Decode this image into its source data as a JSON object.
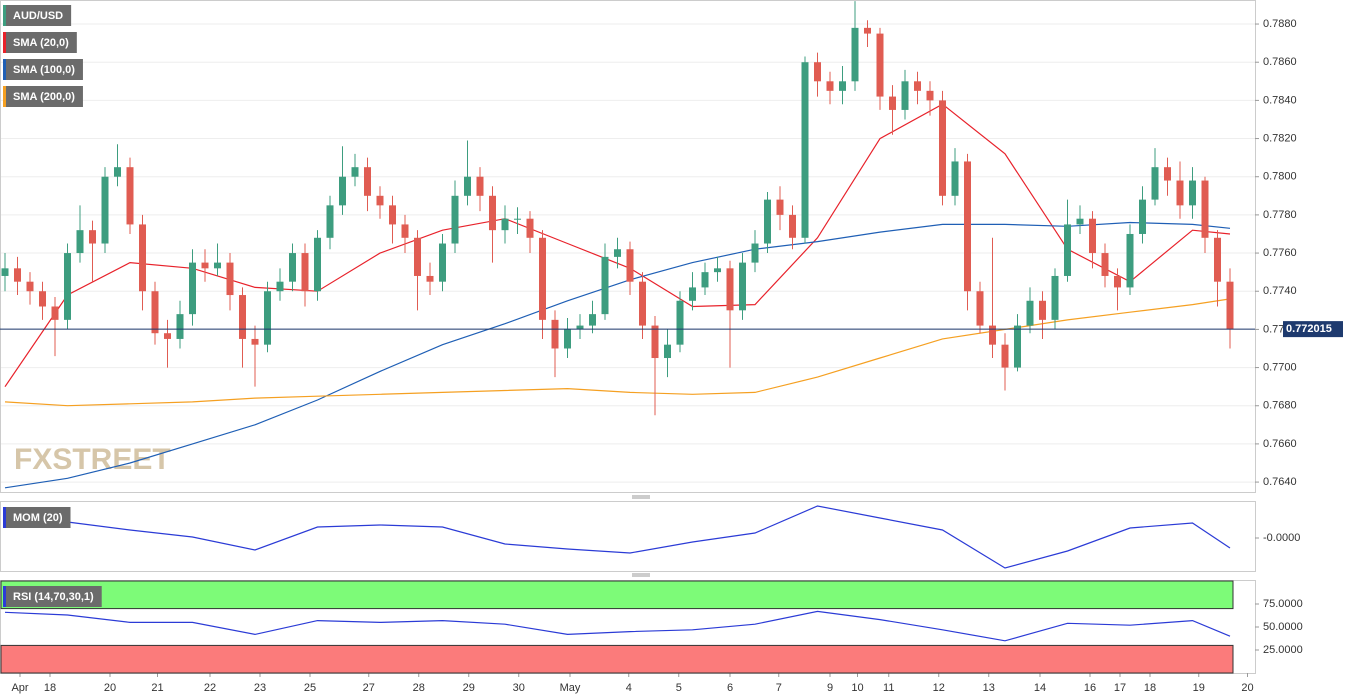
{
  "chart_data": [
    {
      "type": "candlestick",
      "name": "AUD/USD",
      "up_color": "#3d9d7f",
      "down_color": "#e05c52",
      "open": [
        0.7748,
        0.7752,
        0.7745,
        0.774,
        0.7732,
        0.7725,
        0.776,
        0.7772,
        0.7765,
        0.78,
        0.7805,
        0.7775,
        0.774,
        0.7718,
        0.7715,
        0.7728,
        0.7755,
        0.7752,
        0.7755,
        0.7738,
        0.7715,
        0.7712,
        0.774,
        0.7745,
        0.776,
        0.774,
        0.7768,
        0.7785,
        0.78,
        0.7805,
        0.779,
        0.7785,
        0.7775,
        0.7768,
        0.7748,
        0.7745,
        0.7765,
        0.779,
        0.78,
        0.779,
        0.7772,
        0.7778,
        0.7778,
        0.7768,
        0.7725,
        0.771,
        0.772,
        0.7722,
        0.7728,
        0.7758,
        0.7762,
        0.7745,
        0.7722,
        0.7705,
        0.7712,
        0.7735,
        0.7742,
        0.775,
        0.7752,
        0.773,
        0.7755,
        0.7765,
        0.7788,
        0.778,
        0.7768,
        0.786,
        0.785,
        0.7845,
        0.785,
        0.7878,
        0.7875,
        0.7842,
        0.7835,
        0.785,
        0.7845,
        0.784,
        0.779,
        0.7808,
        0.774,
        0.7722,
        0.7712,
        0.77,
        0.7722,
        0.7735,
        0.7725,
        0.7748,
        0.7775,
        0.7778,
        0.776,
        0.7748,
        0.7742,
        0.777,
        0.7788,
        0.7805,
        0.7798,
        0.7785,
        0.7798,
        0.7768,
        0.7745
      ],
      "high": [
        0.776,
        0.7758,
        0.775,
        0.7745,
        0.7737,
        0.7765,
        0.7785,
        0.7777,
        0.7805,
        0.7817,
        0.781,
        0.778,
        0.7745,
        0.7725,
        0.7735,
        0.7762,
        0.7762,
        0.7765,
        0.776,
        0.7742,
        0.7722,
        0.7745,
        0.7752,
        0.7765,
        0.7765,
        0.7772,
        0.779,
        0.7816,
        0.7812,
        0.781,
        0.7795,
        0.779,
        0.778,
        0.7772,
        0.7755,
        0.777,
        0.7798,
        0.7819,
        0.7805,
        0.7795,
        0.7785,
        0.7784,
        0.7782,
        0.7772,
        0.773,
        0.7726,
        0.7728,
        0.7735,
        0.7765,
        0.7768,
        0.7766,
        0.775,
        0.7727,
        0.772,
        0.774,
        0.775,
        0.7755,
        0.7758,
        0.7756,
        0.776,
        0.7772,
        0.7792,
        0.7795,
        0.7785,
        0.7863,
        0.7865,
        0.7855,
        0.7858,
        0.7892,
        0.7882,
        0.7878,
        0.7848,
        0.7856,
        0.7855,
        0.785,
        0.7845,
        0.7815,
        0.7812,
        0.7745,
        0.7768,
        0.7718,
        0.7728,
        0.7742,
        0.774,
        0.7752,
        0.7788,
        0.7785,
        0.7782,
        0.7765,
        0.7752,
        0.7775,
        0.7795,
        0.7815,
        0.781,
        0.7808,
        0.7805,
        0.78,
        0.7772,
        0.7752
      ],
      "low": [
        0.774,
        0.7738,
        0.7733,
        0.7725,
        0.7706,
        0.772,
        0.7755,
        0.7745,
        0.776,
        0.7795,
        0.777,
        0.773,
        0.7712,
        0.77,
        0.771,
        0.7722,
        0.7745,
        0.7748,
        0.773,
        0.77,
        0.769,
        0.7708,
        0.7735,
        0.774,
        0.7732,
        0.7735,
        0.7762,
        0.778,
        0.7795,
        0.7782,
        0.7778,
        0.7765,
        0.776,
        0.773,
        0.7738,
        0.774,
        0.776,
        0.7785,
        0.7782,
        0.7755,
        0.7765,
        0.777,
        0.776,
        0.7715,
        0.7695,
        0.7705,
        0.7715,
        0.7718,
        0.7725,
        0.7752,
        0.7738,
        0.7715,
        0.7675,
        0.7695,
        0.7708,
        0.773,
        0.7738,
        0.7745,
        0.77,
        0.7725,
        0.775,
        0.776,
        0.7772,
        0.7762,
        0.7765,
        0.7842,
        0.7838,
        0.7838,
        0.7845,
        0.7868,
        0.7835,
        0.7822,
        0.783,
        0.7838,
        0.7832,
        0.7785,
        0.7785,
        0.773,
        0.7718,
        0.7705,
        0.7688,
        0.7698,
        0.7718,
        0.7715,
        0.772,
        0.7745,
        0.777,
        0.7752,
        0.7742,
        0.773,
        0.7738,
        0.7765,
        0.7785,
        0.779,
        0.7778,
        0.7778,
        0.776,
        0.7732,
        0.771
      ],
      "close": [
        0.7752,
        0.7745,
        0.774,
        0.7732,
        0.7725,
        0.776,
        0.7772,
        0.7765,
        0.78,
        0.7805,
        0.7775,
        0.774,
        0.7718,
        0.7715,
        0.7728,
        0.7755,
        0.7752,
        0.7755,
        0.7738,
        0.7715,
        0.7712,
        0.774,
        0.7745,
        0.776,
        0.774,
        0.7768,
        0.7785,
        0.78,
        0.7805,
        0.779,
        0.7785,
        0.7775,
        0.7768,
        0.7748,
        0.7745,
        0.7765,
        0.779,
        0.78,
        0.779,
        0.7772,
        0.7778,
        0.7778,
        0.7768,
        0.7725,
        0.771,
        0.772,
        0.7722,
        0.7728,
        0.7758,
        0.7762,
        0.7745,
        0.7722,
        0.7705,
        0.7712,
        0.7735,
        0.7742,
        0.775,
        0.7752,
        0.773,
        0.7755,
        0.7765,
        0.7788,
        0.778,
        0.7768,
        0.786,
        0.785,
        0.7845,
        0.785,
        0.7878,
        0.7875,
        0.7842,
        0.7835,
        0.785,
        0.7845,
        0.784,
        0.779,
        0.7808,
        0.774,
        0.7722,
        0.7712,
        0.77,
        0.7722,
        0.7735,
        0.7725,
        0.7748,
        0.7775,
        0.7778,
        0.776,
        0.7748,
        0.7742,
        0.777,
        0.7788,
        0.7805,
        0.7798,
        0.7785,
        0.7798,
        0.7768,
        0.7745,
        0.772015
      ],
      "last_price": 0.772015,
      "watermark": "FXSTREET",
      "overlays": [
        {
          "name": "SMA (20,0)",
          "color": "#e8222b",
          "x": [
            0,
            5,
            10,
            15,
            20,
            25,
            30,
            35,
            40,
            45,
            50,
            55,
            60,
            65,
            70,
            75,
            80,
            85,
            90,
            95,
            98
          ],
          "values": [
            0.769,
            0.7738,
            0.7755,
            0.7752,
            0.7742,
            0.774,
            0.776,
            0.7772,
            0.7778,
            0.7765,
            0.7752,
            0.7732,
            0.7733,
            0.7768,
            0.782,
            0.7838,
            0.7812,
            0.7762,
            0.7745,
            0.7772,
            0.777
          ]
        },
        {
          "name": "SMA (100,0)",
          "color": "#1f5fb5",
          "x": [
            0,
            5,
            10,
            15,
            20,
            25,
            30,
            35,
            40,
            45,
            50,
            55,
            60,
            65,
            70,
            75,
            80,
            85,
            90,
            95,
            98
          ],
          "values": [
            0.7637,
            0.7642,
            0.765,
            0.766,
            0.767,
            0.7683,
            0.7698,
            0.7712,
            0.7723,
            0.7735,
            0.7746,
            0.7755,
            0.7762,
            0.7766,
            0.7771,
            0.7775,
            0.7775,
            0.7774,
            0.7776,
            0.7775,
            0.7773
          ]
        },
        {
          "name": "SMA (200,0)",
          "color": "#f5a022",
          "x": [
            0,
            5,
            10,
            15,
            20,
            25,
            30,
            35,
            40,
            45,
            50,
            55,
            60,
            65,
            70,
            75,
            80,
            85,
            90,
            95,
            98
          ],
          "values": [
            0.7682,
            0.768,
            0.7681,
            0.7682,
            0.7684,
            0.7685,
            0.7686,
            0.7687,
            0.7688,
            0.7689,
            0.7687,
            0.7686,
            0.7687,
            0.7695,
            0.7705,
            0.7715,
            0.772,
            0.7725,
            0.7729,
            0.7733,
            0.7736
          ]
        }
      ],
      "xlim": [
        -0.4,
        100
      ],
      "xticks": [
        {
          "value": 1.2,
          "label": "Apr"
        },
        {
          "value": 3.6,
          "label": "18"
        },
        {
          "value": 8.4,
          "label": "20"
        },
        {
          "value": 12.2,
          "label": "21"
        },
        {
          "value": 16.4,
          "label": "22"
        },
        {
          "value": 20.4,
          "label": "23"
        },
        {
          "value": 24.4,
          "label": "25"
        },
        {
          "value": 29.1,
          "label": "27"
        },
        {
          "value": 33.1,
          "label": "28"
        },
        {
          "value": 37.1,
          "label": "29"
        },
        {
          "value": 41.1,
          "label": "30"
        },
        {
          "value": 45.2,
          "label": "May"
        },
        {
          "value": 49.9,
          "label": "4"
        },
        {
          "value": 53.9,
          "label": "5"
        },
        {
          "value": 58,
          "label": "6"
        },
        {
          "value": 61.9,
          "label": "7"
        },
        {
          "value": 66,
          "label": "9"
        },
        {
          "value": 68.2,
          "label": "10"
        },
        {
          "value": 70.7,
          "label": "11"
        },
        {
          "value": 74.7,
          "label": "12"
        },
        {
          "value": 78.7,
          "label": "13"
        },
        {
          "value": 82.8,
          "label": "14"
        },
        {
          "value": 86.8,
          "label": "16"
        },
        {
          "value": 89.2,
          "label": "17"
        },
        {
          "value": 91.6,
          "label": "18"
        },
        {
          "value": 95.5,
          "label": "19"
        },
        {
          "value": 99.4,
          "label": "20"
        }
      ],
      "ylim": [
        0.76348,
        0.78926
      ],
      "yticks": [
        {
          "value": 0.764,
          "label": "0.7640"
        },
        {
          "value": 0.766,
          "label": "0.7660"
        },
        {
          "value": 0.768,
          "label": "0.7680"
        },
        {
          "value": 0.77,
          "label": "0.7700"
        },
        {
          "value": 0.772,
          "label": "0.7720"
        },
        {
          "value": 0.774,
          "label": "0.7740"
        },
        {
          "value": 0.776,
          "label": "0.7760"
        },
        {
          "value": 0.778,
          "label": "0.7780"
        },
        {
          "value": 0.78,
          "label": "0.7800"
        },
        {
          "value": 0.782,
          "label": "0.7820"
        },
        {
          "value": 0.784,
          "label": "0.7840"
        },
        {
          "value": 0.786,
          "label": "0.7860"
        },
        {
          "value": 0.788,
          "label": "0.7880"
        }
      ],
      "grid": true
    },
    {
      "type": "line",
      "xlim": [
        -0.4,
        100
      ],
      "ylim": [
        -0.0034,
        0.0036
      ],
      "yticks": [
        {
          "value": 0,
          "label": "-0.0000"
        }
      ],
      "series": [
        {
          "name": "MOM (20)",
          "color": "#2b3bd6",
          "x": [
            0,
            5,
            10,
            15,
            20,
            25,
            30,
            35,
            40,
            45,
            50,
            55,
            60,
            65,
            70,
            75,
            80,
            85,
            90,
            95,
            98
          ],
          "values": [
            0.0028,
            0.0016,
            0.0008,
            0.0001,
            -0.0012,
            0.0011,
            0.0013,
            0.0011,
            -0.0006,
            -0.0011,
            -0.0015,
            -0.0004,
            0.0005,
            0.0032,
            0.002,
            0.0008,
            -0.003,
            -0.0013,
            0.001,
            0.0015,
            -0.001
          ]
        }
      ]
    },
    {
      "type": "line",
      "xlim": [
        -0.4,
        100
      ],
      "ylim": [
        0,
        100
      ],
      "yticks": [
        {
          "value": 75,
          "label": "75.0000"
        },
        {
          "value": 50,
          "label": "50.0000"
        },
        {
          "value": 25,
          "label": "25.0000"
        }
      ],
      "zones": [
        {
          "from": 70,
          "to": 100,
          "color": "#7dfb78"
        },
        {
          "from": 0,
          "to": 30,
          "color": "#fb7b7b"
        }
      ],
      "series": [
        {
          "name": "RSI (14,70,30,1)",
          "color": "#2b3bd6",
          "x": [
            0,
            5,
            10,
            15,
            20,
            25,
            30,
            35,
            40,
            45,
            50,
            55,
            60,
            65,
            70,
            75,
            80,
            85,
            90,
            95,
            98
          ],
          "values": [
            66,
            63,
            55,
            55,
            42,
            57,
            55,
            57,
            53,
            42,
            45,
            47,
            53,
            67,
            58,
            47,
            35,
            54,
            52,
            57,
            40
          ]
        }
      ]
    }
  ]
}
